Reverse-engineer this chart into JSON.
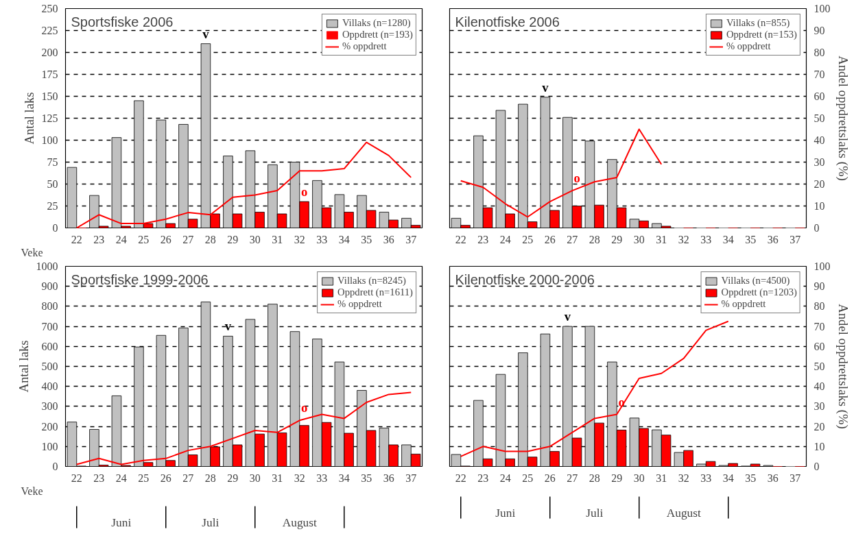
{
  "chart_data": [
    {
      "type": "bar",
      "title": "Sportsfiske 2006",
      "xlabel": "Veke",
      "ylabel": "Antal laks",
      "categories": [
        "22",
        "23",
        "24",
        "25",
        "26",
        "27",
        "28",
        "29",
        "30",
        "31",
        "32",
        "33",
        "34",
        "35",
        "36",
        "37"
      ],
      "series": [
        {
          "name": "Villaks (n=1280)",
          "color": "#c0c0c0",
          "values": [
            69,
            37,
            103,
            145,
            123,
            118,
            210,
            82,
            88,
            72,
            75,
            54,
            38,
            37,
            18,
            11
          ]
        },
        {
          "name": "Oppdrett (n=193)",
          "color": "#ff0000",
          "values": [
            0,
            2,
            2,
            5,
            5,
            10,
            16,
            16,
            18,
            16,
            30,
            23,
            18,
            20,
            9,
            3
          ]
        },
        {
          "name": "% oppdrett",
          "type": "line",
          "color": "#ff0000",
          "axis": "y2",
          "values": [
            0,
            6,
            2,
            2,
            4,
            7,
            6,
            14,
            15,
            17,
            26,
            26,
            27,
            39,
            33,
            23
          ]
        }
      ],
      "ylim": [
        0,
        250
      ],
      "yticks": [
        0,
        25,
        50,
        75,
        100,
        125,
        150,
        175,
        200,
        225,
        250
      ],
      "y2lim": [
        0,
        100
      ],
      "grid": "y",
      "legend": "top right",
      "annotations": [
        {
          "text": "v",
          "x": "28",
          "y": 210
        },
        {
          "text": "o",
          "x": "32",
          "y": 30
        }
      ]
    },
    {
      "type": "bar",
      "title": "Kilenotfiske 2006",
      "y2label": "Andel oppdrettslaks (%)",
      "categories": [
        "22",
        "23",
        "24",
        "25",
        "26",
        "27",
        "28",
        "29",
        "30",
        "31",
        "32",
        "33",
        "34",
        "35",
        "36",
        "37"
      ],
      "series": [
        {
          "name": "Villaks (n=855)",
          "color": "#c0c0c0",
          "values": [
            11,
            105,
            134,
            141,
            149,
            126,
            99,
            78,
            10,
            5,
            0,
            0,
            0,
            0,
            0,
            0
          ]
        },
        {
          "name": "Oppdrett (n=153)",
          "color": "#ff0000",
          "values": [
            3,
            23,
            16,
            7,
            20,
            25,
            26,
            23,
            8,
            2,
            0,
            0,
            0,
            0,
            0,
            0
          ]
        },
        {
          "name": "% oppdrett",
          "type": "line",
          "color": "#ff0000",
          "axis": "y2",
          "values": [
            21.5,
            18.5,
            11,
            5,
            12,
            17,
            21,
            23,
            45,
            29,
            null,
            null,
            null,
            null,
            null,
            null
          ]
        }
      ],
      "ylim": [
        0,
        250
      ],
      "y2lim": [
        0,
        100
      ],
      "y2ticks": [
        0,
        10,
        20,
        30,
        40,
        50,
        60,
        70,
        80,
        90,
        100
      ],
      "grid": "y",
      "legend": "top right",
      "annotations": [
        {
          "text": "v",
          "x": "26",
          "y": 149
        },
        {
          "text": "o",
          "x": "27",
          "y": 25
        }
      ]
    },
    {
      "type": "bar",
      "title": "Sportsfiske 1999-2006",
      "xlabel": "Veke",
      "ylabel": "Antal laks",
      "categories": [
        "22",
        "23",
        "24",
        "25",
        "26",
        "27",
        "28",
        "29",
        "30",
        "31",
        "32",
        "33",
        "34",
        "35",
        "36",
        "37"
      ],
      "series": [
        {
          "name": "Villaks (n=8245)",
          "color": "#c0c0c0",
          "values": [
            222,
            185,
            353,
            597,
            655,
            692,
            822,
            651,
            735,
            811,
            674,
            637,
            522,
            380,
            192,
            108
          ]
        },
        {
          "name": "Oppdrett (n=1611)",
          "color": "#ff0000",
          "values": [
            2,
            7,
            5,
            20,
            30,
            58,
            98,
            108,
            162,
            168,
            205,
            220,
            166,
            180,
            108,
            62
          ]
        },
        {
          "name": "% oppdrett",
          "type": "line",
          "color": "#ff0000",
          "axis": "y2",
          "values": [
            1,
            4,
            1,
            3,
            4,
            8,
            10,
            14,
            18,
            17,
            23,
            26,
            24,
            32,
            36,
            37
          ]
        }
      ],
      "ylim": [
        0,
        1000
      ],
      "yticks": [
        0,
        100,
        200,
        300,
        400,
        500,
        600,
        700,
        800,
        900,
        1000
      ],
      "y2lim": [
        0,
        100
      ],
      "grid": "y",
      "legend": "top right",
      "annotations": [
        {
          "text": "v",
          "x": "29",
          "y": 651
        },
        {
          "text": "o",
          "x": "32",
          "y": 205
        },
        "Juni",
        "Juli",
        "August"
      ]
    },
    {
      "type": "bar",
      "title": "Kilenotfiske 2000-2006",
      "y2label": "Andel oppdrettslaks (%)",
      "categories": [
        "22",
        "23",
        "24",
        "25",
        "26",
        "27",
        "28",
        "29",
        "30",
        "31",
        "32",
        "33",
        "34",
        "35",
        "36",
        "37"
      ],
      "series": [
        {
          "name": "Villaks (n=4500)",
          "color": "#c0c0c0",
          "values": [
            60,
            330,
            460,
            568,
            662,
            700,
            700,
            522,
            242,
            183,
            70,
            12,
            5,
            2,
            5,
            0
          ]
        },
        {
          "name": "Oppdrett (n=1203)",
          "color": "#ff0000",
          "values": [
            2,
            38,
            38,
            47,
            75,
            142,
            217,
            182,
            190,
            157,
            80,
            25,
            15,
            12,
            0,
            0
          ]
        },
        {
          "name": "% oppdrett",
          "type": "line",
          "color": "#ff0000",
          "axis": "y2",
          "values": [
            5,
            10,
            7.5,
            7.5,
            10,
            17,
            24,
            26,
            44,
            46.5,
            54,
            68,
            72.5,
            null,
            null,
            null
          ]
        }
      ],
      "ylim": [
        0,
        1000
      ],
      "y2lim": [
        0,
        100
      ],
      "y2ticks": [
        0,
        10,
        20,
        30,
        40,
        50,
        60,
        70,
        80,
        90,
        100
      ],
      "grid": "y",
      "legend": "top right",
      "annotations": [
        {
          "text": "v",
          "x": "27",
          "y": 700
        },
        {
          "text": "o",
          "x": "29",
          "y": 182
        },
        "Juni",
        "Juli",
        "August"
      ]
    }
  ]
}
